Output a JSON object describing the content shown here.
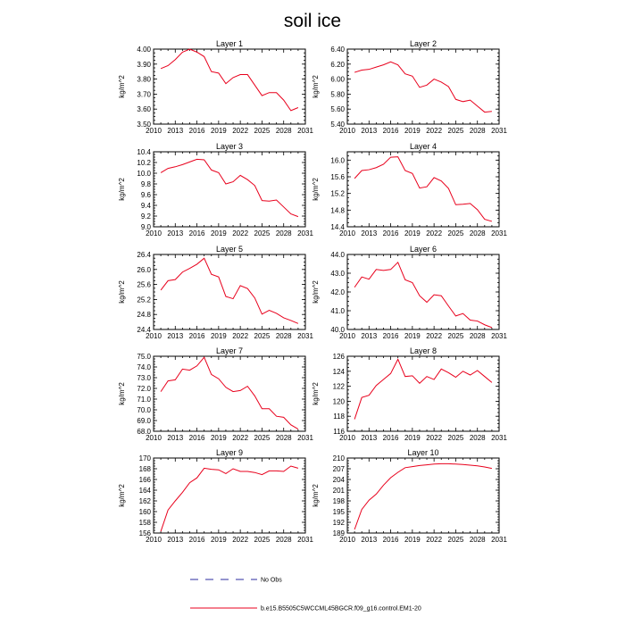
{
  "title": "soil ice",
  "legend": {
    "no_obs_label": "No Obs",
    "run_label": "b.e15.B5505C5WCCML45BGCR.f09_g16.control.EM1-20",
    "obs_color": "#2b2b9f",
    "run_color": "#e8001c"
  },
  "chart_data": [
    {
      "type": "line",
      "title": "Layer 1",
      "ylabel": "kg/m^2",
      "xlim": [
        2010,
        2031
      ],
      "x_ticks": [
        "2010",
        "2013",
        "2016",
        "2019",
        "2022",
        "2025",
        "2028",
        "2031"
      ],
      "ylim": [
        3.5,
        4.0
      ],
      "y_ticks": [
        "3.50",
        "3.60",
        "3.70",
        "3.80",
        "3.90",
        "4.00"
      ],
      "series": [
        {
          "name": "b.e15.B5505C5WCCML45BGCR.f09_g16.control.EM1-20",
          "x": [
            2011,
            2012,
            2013,
            2014,
            2015,
            2016,
            2017,
            2018,
            2019,
            2020,
            2021,
            2022,
            2023,
            2024,
            2025,
            2026,
            2027,
            2028,
            2029,
            2030
          ],
          "values": [
            3.87,
            3.89,
            3.93,
            3.98,
            4.0,
            3.98,
            3.95,
            3.85,
            3.84,
            3.77,
            3.81,
            3.83,
            3.83,
            3.76,
            3.69,
            3.71,
            3.71,
            3.66,
            3.59,
            3.61
          ]
        }
      ]
    },
    {
      "type": "line",
      "title": "Layer 2",
      "ylabel": "kg/m^2",
      "xlim": [
        2010,
        2031
      ],
      "x_ticks": [
        "2010",
        "2013",
        "2016",
        "2019",
        "2022",
        "2025",
        "2028",
        "2031"
      ],
      "ylim": [
        5.4,
        6.4
      ],
      "y_ticks": [
        "5.40",
        "5.60",
        "5.80",
        "6.00",
        "6.20",
        "6.40"
      ],
      "series": [
        {
          "name": "b.e15.B5505C5WCCML45BGCR.f09_g16.control.EM1-20",
          "x": [
            2011,
            2012,
            2013,
            2014,
            2015,
            2016,
            2017,
            2018,
            2019,
            2020,
            2021,
            2022,
            2023,
            2024,
            2025,
            2026,
            2027,
            2028,
            2029,
            2030
          ],
          "values": [
            6.09,
            6.12,
            6.13,
            6.16,
            6.19,
            6.23,
            6.19,
            6.07,
            6.04,
            5.89,
            5.92,
            6.0,
            5.96,
            5.9,
            5.73,
            5.7,
            5.72,
            5.64,
            5.56,
            5.57
          ]
        }
      ]
    },
    {
      "type": "line",
      "title": "Layer 3",
      "ylabel": "kg/m^2",
      "xlim": [
        2010,
        2031
      ],
      "x_ticks": [
        "2010",
        "2013",
        "2016",
        "2019",
        "2022",
        "2025",
        "2028",
        "2031"
      ],
      "ylim": [
        9.0,
        10.4
      ],
      "y_ticks": [
        "9.0",
        "9.2",
        "9.4",
        "9.6",
        "9.8",
        "10.0",
        "10.2",
        "10.4"
      ],
      "series": [
        {
          "name": "b.e15.B5505C5WCCML45BGCR.f09_g16.control.EM1-20",
          "x": [
            2011,
            2012,
            2013,
            2014,
            2015,
            2016,
            2017,
            2018,
            2019,
            2020,
            2021,
            2022,
            2023,
            2024,
            2025,
            2026,
            2027,
            2028,
            2029,
            2030
          ],
          "values": [
            10.01,
            10.09,
            10.12,
            10.16,
            10.21,
            10.26,
            10.25,
            10.06,
            10.01,
            9.8,
            9.84,
            9.96,
            9.88,
            9.77,
            9.49,
            9.48,
            9.5,
            9.37,
            9.24,
            9.19
          ]
        }
      ]
    },
    {
      "type": "line",
      "title": "Layer 4",
      "ylabel": "kg/m^2",
      "xlim": [
        2010,
        2031
      ],
      "x_ticks": [
        "2010",
        "2013",
        "2016",
        "2019",
        "2022",
        "2025",
        "2028",
        "2031"
      ],
      "ylim": [
        14.4,
        16.2
      ],
      "y_ticks": [
        "14.4",
        "14.8",
        "15.2",
        "15.6",
        "16.0"
      ],
      "series": [
        {
          "name": "b.e15.B5505C5WCCML45BGCR.f09_g16.control.EM1-20",
          "x": [
            2011,
            2012,
            2013,
            2014,
            2015,
            2016,
            2017,
            2018,
            2019,
            2020,
            2021,
            2022,
            2023,
            2024,
            2025,
            2026,
            2027,
            2028,
            2029,
            2030
          ],
          "values": [
            15.56,
            15.75,
            15.77,
            15.82,
            15.9,
            16.07,
            16.08,
            15.75,
            15.68,
            15.33,
            15.36,
            15.58,
            15.5,
            15.32,
            14.93,
            14.94,
            14.96,
            14.81,
            14.58,
            14.53
          ]
        }
      ]
    },
    {
      "type": "line",
      "title": "Layer 5",
      "ylabel": "kg/m^2",
      "xlim": [
        2010,
        2031
      ],
      "x_ticks": [
        "2010",
        "2013",
        "2016",
        "2019",
        "2022",
        "2025",
        "2028",
        "2031"
      ],
      "ylim": [
        24.4,
        26.4
      ],
      "y_ticks": [
        "24.4",
        "24.8",
        "25.2",
        "25.6",
        "26.0",
        "26.4"
      ],
      "series": [
        {
          "name": "b.e15.B5505C5WCCML45BGCR.f09_g16.control.EM1-20",
          "x": [
            2011,
            2012,
            2013,
            2014,
            2015,
            2016,
            2017,
            2018,
            2019,
            2020,
            2021,
            2022,
            2023,
            2024,
            2025,
            2026,
            2027,
            2028,
            2029,
            2030
          ],
          "values": [
            25.45,
            25.7,
            25.73,
            25.93,
            26.03,
            26.14,
            26.3,
            25.87,
            25.8,
            25.28,
            25.22,
            25.57,
            25.49,
            25.24,
            24.81,
            24.91,
            24.83,
            24.71,
            24.64,
            24.56
          ]
        }
      ]
    },
    {
      "type": "line",
      "title": "Layer 6",
      "ylabel": "kg/m^2",
      "xlim": [
        2010,
        2031
      ],
      "x_ticks": [
        "2010",
        "2013",
        "2016",
        "2019",
        "2022",
        "2025",
        "2028",
        "2031"
      ],
      "ylim": [
        40.0,
        44.0
      ],
      "y_ticks": [
        "40.0",
        "41.0",
        "42.0",
        "43.0",
        "44.0"
      ],
      "series": [
        {
          "name": "b.e15.B5505C5WCCML45BGCR.f09_g16.control.EM1-20",
          "x": [
            2011,
            2012,
            2013,
            2014,
            2015,
            2016,
            2017,
            2018,
            2019,
            2020,
            2021,
            2022,
            2023,
            2024,
            2025,
            2026,
            2027,
            2028,
            2029,
            2030
          ],
          "values": [
            42.25,
            42.8,
            42.68,
            43.2,
            43.15,
            43.2,
            43.58,
            42.65,
            42.5,
            41.8,
            41.45,
            41.85,
            41.8,
            41.25,
            40.72,
            40.85,
            40.5,
            40.45,
            40.25,
            40.1
          ]
        }
      ]
    },
    {
      "type": "line",
      "title": "Layer 7",
      "ylabel": "kg/m^2",
      "xlim": [
        2010,
        2031
      ],
      "x_ticks": [
        "2010",
        "2013",
        "2016",
        "2019",
        "2022",
        "2025",
        "2028",
        "2031"
      ],
      "ylim": [
        68.0,
        75.0
      ],
      "y_ticks": [
        "68.0",
        "69.0",
        "70.0",
        "71.0",
        "72.0",
        "73.0",
        "74.0",
        "75.0"
      ],
      "series": [
        {
          "name": "b.e15.B5505C5WCCML45BGCR.f09_g16.control.EM1-20",
          "x": [
            2011,
            2012,
            2013,
            2014,
            2015,
            2016,
            2017,
            2018,
            2019,
            2020,
            2021,
            2022,
            2023,
            2024,
            2025,
            2026,
            2027,
            2028,
            2029,
            2030
          ],
          "values": [
            71.7,
            72.7,
            72.8,
            73.8,
            73.7,
            74.1,
            74.9,
            73.3,
            72.9,
            72.1,
            71.7,
            71.8,
            72.2,
            71.3,
            70.1,
            70.1,
            69.4,
            69.3,
            68.6,
            68.2
          ]
        }
      ]
    },
    {
      "type": "line",
      "title": "Layer 8",
      "ylabel": "kg/m^2",
      "xlim": [
        2010,
        2031
      ],
      "x_ticks": [
        "2010",
        "2013",
        "2016",
        "2019",
        "2022",
        "2025",
        "2028",
        "2031"
      ],
      "ylim": [
        116,
        126
      ],
      "y_ticks": [
        "116",
        "118",
        "120",
        "122",
        "124",
        "126"
      ],
      "series": [
        {
          "name": "b.e15.B5505C5WCCML45BGCR.f09_g16.control.EM1-20",
          "x": [
            2011,
            2012,
            2013,
            2014,
            2015,
            2016,
            2017,
            2018,
            2019,
            2020,
            2021,
            2022,
            2023,
            2024,
            2025,
            2026,
            2027,
            2028,
            2029,
            2030
          ],
          "values": [
            117.6,
            120.5,
            120.8,
            122.1,
            122.9,
            123.7,
            125.6,
            123.3,
            123.4,
            122.4,
            123.3,
            122.9,
            124.3,
            123.8,
            123.2,
            124.0,
            123.5,
            124.1,
            123.3,
            122.5
          ]
        }
      ]
    },
    {
      "type": "line",
      "title": "Layer 9",
      "ylabel": "kg/m^2",
      "xlim": [
        2010,
        2031
      ],
      "x_ticks": [
        "2010",
        "2013",
        "2016",
        "2019",
        "2022",
        "2025",
        "2028",
        "2031"
      ],
      "ylim": [
        156,
        170
      ],
      "y_ticks": [
        "156",
        "158",
        "160",
        "162",
        "164",
        "166",
        "168",
        "170"
      ],
      "series": [
        {
          "name": "b.e15.B5505C5WCCML45BGCR.f09_g16.control.EM1-20",
          "x": [
            2011,
            2012,
            2013,
            2014,
            2015,
            2016,
            2017,
            2018,
            2019,
            2020,
            2021,
            2022,
            2023,
            2024,
            2025,
            2026,
            2027,
            2028,
            2029,
            2030
          ],
          "values": [
            156.3,
            160.3,
            162.0,
            163.6,
            165.4,
            166.3,
            168.1,
            167.9,
            167.8,
            167.1,
            168.0,
            167.5,
            167.5,
            167.3,
            166.9,
            167.6,
            167.6,
            167.5,
            168.5,
            168.1
          ]
        }
      ]
    },
    {
      "type": "line",
      "title": "Layer 10",
      "ylabel": "kg/m^2",
      "xlim": [
        2010,
        2031
      ],
      "x_ticks": [
        "2010",
        "2013",
        "2016",
        "2019",
        "2022",
        "2025",
        "2028",
        "2031"
      ],
      "ylim": [
        189,
        210
      ],
      "y_ticks": [
        "189",
        "192",
        "195",
        "198",
        "201",
        "204",
        "207",
        "210"
      ],
      "series": [
        {
          "name": "b.e15.B5505C5WCCML45BGCR.f09_g16.control.EM1-20",
          "x": [
            2011,
            2012,
            2013,
            2014,
            2015,
            2016,
            2017,
            2018,
            2019,
            2020,
            2021,
            2022,
            2023,
            2024,
            2025,
            2026,
            2027,
            2028,
            2029,
            2030
          ],
          "values": [
            190.0,
            195.6,
            198.2,
            199.9,
            202.4,
            204.5,
            206.0,
            207.3,
            207.6,
            207.9,
            208.1,
            208.3,
            208.4,
            208.4,
            208.3,
            208.2,
            208.0,
            207.8,
            207.5,
            207.1
          ]
        }
      ]
    }
  ]
}
